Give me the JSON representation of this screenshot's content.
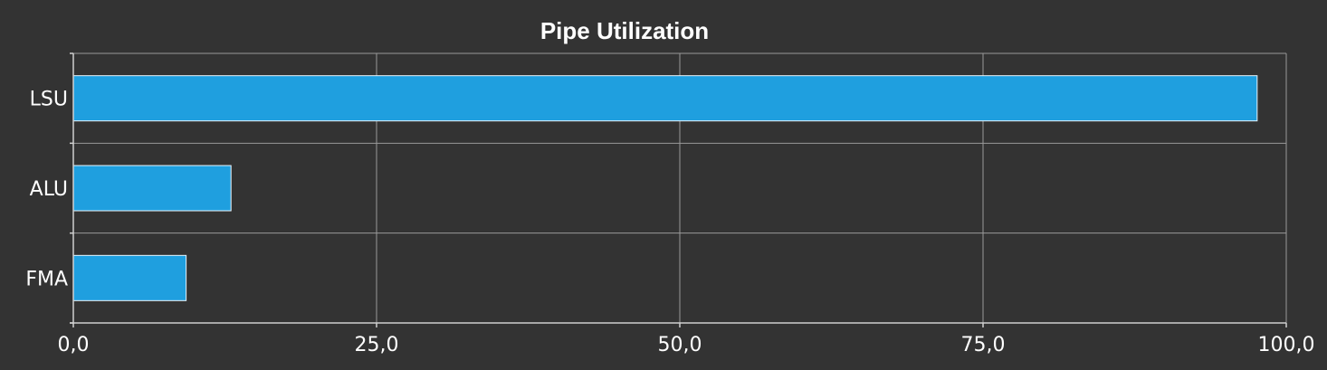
{
  "chart_data": {
    "type": "bar",
    "orientation": "horizontal",
    "title": "Pipe Utilization",
    "xlabel": "",
    "ylabel": "",
    "categories": [
      "LSU",
      "ALU",
      "FMA"
    ],
    "values": [
      97.6,
      13.0,
      9.3
    ],
    "xlim": [
      0,
      100
    ],
    "x_ticks": [
      0,
      25,
      50,
      75,
      100
    ],
    "x_tick_labels": [
      "0,0",
      "25,0",
      "50,0",
      "75,0",
      "100,0"
    ],
    "grid": true,
    "legend": "none",
    "colors": {
      "background": "#333333",
      "bar": "#1f9fdf",
      "grid": "#9a9a9a",
      "text": "#ffffff"
    }
  }
}
